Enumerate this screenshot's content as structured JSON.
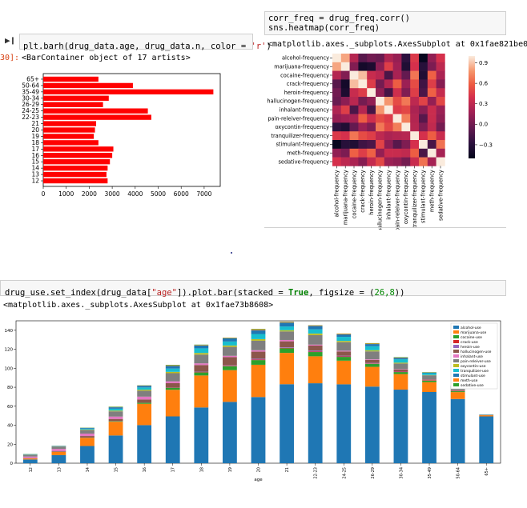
{
  "cell1": {
    "code_prefix": "plt.barh(drug_data.age, drug_data.n, color = ",
    "code_string": "'r'",
    "code_suffix": ")",
    "prompt": "30]:",
    "output": "<BarContainer object of 17 artists>"
  },
  "cell2": {
    "code_line1": "corr_freq = drug_freq.corr()",
    "code_line2": "sns.heatmap(corr_freq)",
    "output": "<matplotlib.axes._subplots.AxesSubplot at 0x1fae821be08>"
  },
  "cell3": {
    "code_prefix": "drug_use.set_index(drug_data[",
    "code_string": "\"age\"",
    "code_mid": "]).plot.bar(stacked = ",
    "code_true": "True",
    "code_mid2": ", figsize = (",
    "code_nums": "26,8",
    "code_suffix": "))",
    "output": "<matplotlib.axes._subplots.AxesSubplot at 0x1fae73b8608>"
  },
  "chart_data": [
    {
      "type": "bar",
      "orientation": "horizontal",
      "categories": [
        "12",
        "13",
        "14",
        "15",
        "16",
        "17",
        "18",
        "19",
        "20",
        "21",
        "22-23",
        "24-25",
        "26-29",
        "30-34",
        "35-49",
        "50-64",
        "65+"
      ],
      "values": [
        2800,
        2750,
        2800,
        2900,
        3000,
        3050,
        2400,
        2200,
        2250,
        2300,
        4700,
        4550,
        2600,
        2850,
        7400,
        3900,
        2400
      ],
      "xticks": [
        0,
        1000,
        2000,
        3000,
        4000,
        5000,
        6000,
        7000
      ],
      "xlim": [
        0,
        7700
      ],
      "color": "#ff0000"
    },
    {
      "type": "heatmap",
      "rows": [
        "alcohol-frequency",
        "marijuana-frequency",
        "cocaine-frequency",
        "crack-frequency",
        "heroin-frequency",
        "hallucinogen-frequency",
        "inhalant-frequency",
        "pain-releiver-frequency",
        "oxycontin-frequency",
        "tranquilizer-frequency",
        "stimulant-frequency",
        "meth-frequency",
        "sedative-frequency"
      ],
      "columns": [
        "alcohol-frequency",
        "marijuana-frequency",
        "cocaine-frequency",
        "crack-frequency",
        "heroin-frequency",
        "hallucinogen-frequency",
        "inhalant-frequency",
        "pain-releiver-frequency",
        "oxycontin-frequency",
        "tranquilizer-frequency",
        "stimulant-frequency",
        "meth-frequency",
        "sedative-frequency"
      ],
      "colorbar_ticks": [
        0.9,
        0.6,
        0.3,
        0.0,
        -0.3
      ],
      "colorbar_tick_labels": [
        "0.9",
        "0.6",
        "0.3",
        "0.0",
        "−0.3"
      ],
      "vmin": -0.5,
      "vmax": 1.0,
      "values": [
        [
          1.0,
          0.82,
          0.26,
          -0.1,
          0.0,
          -0.03,
          0.24,
          0.14,
          -0.27,
          0.44,
          -0.47,
          0.12,
          0.4
        ],
        [
          0.82,
          1.0,
          0.06,
          -0.4,
          -0.36,
          0.1,
          0.46,
          0.18,
          -0.34,
          0.4,
          -0.3,
          0.04,
          0.3
        ],
        [
          0.26,
          0.06,
          1.0,
          0.88,
          0.34,
          0.28,
          -0.15,
          0.21,
          -0.05,
          0.67,
          -0.34,
          0.6,
          0.22
        ],
        [
          -0.1,
          -0.4,
          0.88,
          1.0,
          0.45,
          0.01,
          0.26,
          0.59,
          0.16,
          0.52,
          -0.2,
          0.46,
          0.08
        ],
        [
          0.0,
          -0.36,
          0.34,
          0.45,
          1.0,
          0.12,
          -0.17,
          0.37,
          0.05,
          0.46,
          -0.15,
          0.6,
          0.33
        ],
        [
          -0.03,
          0.1,
          0.28,
          0.01,
          0.12,
          1.0,
          0.78,
          0.52,
          0.68,
          0.3,
          0.48,
          0.13,
          0.5
        ],
        [
          0.24,
          0.46,
          -0.15,
          0.26,
          -0.17,
          0.78,
          1.0,
          0.45,
          0.5,
          0.22,
          0.1,
          0.35,
          0.16
        ],
        [
          0.14,
          0.18,
          0.21,
          0.59,
          0.37,
          0.52,
          0.45,
          1.0,
          0.7,
          0.25,
          -0.1,
          0.34,
          0.12
        ],
        [
          -0.27,
          -0.34,
          -0.05,
          0.16,
          0.05,
          0.68,
          0.5,
          0.7,
          1.0,
          0.27,
          0.05,
          0.31,
          0.01
        ],
        [
          0.44,
          0.4,
          0.67,
          0.52,
          0.46,
          0.3,
          0.22,
          0.25,
          0.27,
          1.0,
          0.4,
          0.59,
          0.35
        ],
        [
          -0.47,
          -0.3,
          -0.34,
          -0.2,
          -0.15,
          0.48,
          0.1,
          -0.1,
          0.05,
          0.4,
          1.0,
          -0.16,
          0.66
        ],
        [
          0.12,
          0.04,
          0.6,
          0.46,
          0.6,
          0.13,
          0.35,
          0.34,
          0.31,
          0.59,
          -0.16,
          1.0,
          0.2
        ],
        [
          0.4,
          0.3,
          0.22,
          0.08,
          0.33,
          0.5,
          0.16,
          0.12,
          0.01,
          0.35,
          0.66,
          0.2,
          1.0
        ]
      ]
    },
    {
      "type": "bar",
      "stacked": true,
      "categories": [
        "12",
        "13",
        "14",
        "15",
        "16",
        "17",
        "18",
        "19",
        "20",
        "21",
        "22-23",
        "24-25",
        "26-29",
        "30-34",
        "35-49",
        "50-64",
        "65+"
      ],
      "xlabel": "age",
      "yticks": [
        0,
        20,
        40,
        60,
        80,
        100,
        120,
        140
      ],
      "ylim": [
        0,
        150
      ],
      "legend_placement": "top-right",
      "series": [
        {
          "name": "alcohol-use",
          "color": "#1f77b4",
          "values": [
            3.9,
            8.5,
            18.1,
            29.2,
            40.1,
            49.3,
            58.7,
            64.6,
            69.7,
            83.2,
            84.2,
            83.1,
            80.7,
            77.5,
            75.0,
            67.6,
            49.3
          ]
        },
        {
          "name": "marijuana-use",
          "color": "#ff7f0e",
          "values": [
            1.1,
            3.4,
            8.7,
            14.5,
            22.5,
            28.0,
            33.7,
            33.4,
            34.0,
            33.0,
            28.4,
            24.9,
            20.8,
            16.4,
            10.4,
            7.3,
            1.2
          ]
        },
        {
          "name": "cocaine-use",
          "color": "#2ca02c",
          "values": [
            0.1,
            0.1,
            0.1,
            0.5,
            1.0,
            2.0,
            3.2,
            4.1,
            4.9,
            4.8,
            4.5,
            4.0,
            3.2,
            2.1,
            1.5,
            0.9,
            0.0
          ]
        },
        {
          "name": "crack-use",
          "color": "#d62728",
          "values": [
            0.0,
            0.0,
            0.0,
            0.1,
            0.0,
            0.1,
            0.4,
            0.5,
            0.6,
            0.5,
            0.5,
            0.5,
            0.4,
            0.5,
            0.5,
            0.4,
            0.0
          ]
        },
        {
          "name": "heroin-use",
          "color": "#9467bd",
          "values": [
            0.1,
            0.0,
            0.1,
            0.2,
            0.1,
            0.1,
            0.4,
            0.5,
            0.9,
            0.6,
            1.1,
            0.7,
            0.6,
            0.4,
            0.1,
            0.1,
            0.0
          ]
        },
        {
          "name": "hallucinogen-use",
          "color": "#8c564b",
          "values": [
            0.2,
            0.6,
            1.6,
            2.1,
            3.4,
            4.8,
            7.0,
            8.6,
            7.4,
            6.3,
            5.2,
            4.5,
            3.2,
            1.8,
            0.6,
            0.3,
            0.1
          ]
        },
        {
          "name": "inhalant-use",
          "color": "#e377c2",
          "values": [
            1.6,
            2.5,
            2.6,
            2.5,
            3.0,
            2.0,
            1.8,
            1.4,
            1.5,
            1.4,
            1.0,
            0.8,
            0.6,
            0.4,
            0.3,
            0.2,
            0.0
          ]
        },
        {
          "name": "pain-releiver-use",
          "color": "#7f7f7f",
          "values": [
            2.0,
            2.4,
            3.9,
            5.5,
            6.2,
            8.5,
            9.2,
            9.4,
            10.0,
            9.0,
            10.0,
            9.0,
            8.3,
            5.9,
            4.2,
            2.5,
            0.6
          ]
        },
        {
          "name": "oxycontin-use",
          "color": "#bcbd22",
          "values": [
            0.1,
            0.1,
            0.4,
            0.8,
            1.1,
            1.4,
            1.7,
            1.5,
            1.7,
            1.3,
            1.7,
            1.3,
            1.2,
            0.9,
            0.3,
            0.4,
            0.0
          ]
        },
        {
          "name": "tranquilizer-use",
          "color": "#17becf",
          "values": [
            0.2,
            0.3,
            0.9,
            2.0,
            2.4,
            3.5,
            4.9,
            4.2,
            5.4,
            3.9,
            4.4,
            4.3,
            4.2,
            3.6,
            1.9,
            1.4,
            0.2
          ]
        },
        {
          "name": "stimulant-use",
          "color": "#1f77b4",
          "values": [
            0.2,
            0.3,
            0.8,
            1.5,
            1.8,
            2.8,
            3.0,
            3.3,
            4.0,
            4.1,
            3.6,
            2.6,
            2.3,
            1.4,
            0.6,
            0.3,
            0.0
          ]
        },
        {
          "name": "meth-use",
          "color": "#ff7f0e",
          "values": [
            0.0,
            0.1,
            0.1,
            0.3,
            0.3,
            0.6,
            0.5,
            0.4,
            0.9,
            0.6,
            0.6,
            0.7,
            0.6,
            0.4,
            0.2,
            0.2,
            0.0
          ]
        },
        {
          "name": "sedative-use",
          "color": "#2ca02c",
          "values": [
            0.2,
            0.1,
            0.2,
            0.4,
            0.2,
            0.5,
            0.4,
            0.3,
            0.5,
            0.3,
            0.2,
            0.2,
            0.4,
            0.4,
            0.3,
            0.2,
            0.0
          ]
        }
      ]
    }
  ]
}
